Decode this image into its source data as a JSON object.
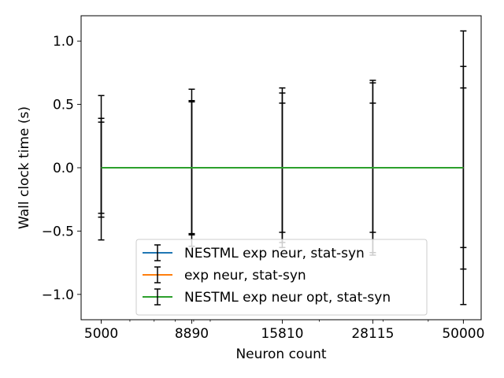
{
  "chart_data": {
    "type": "line",
    "title": "",
    "xlabel": "Neuron count",
    "ylabel": "Wall clock time (s)",
    "x_scale": "log",
    "xlim": [
      4400,
      56000
    ],
    "ylim": [
      -1.2,
      1.2
    ],
    "grid": false,
    "legend_position": "lower-center",
    "x_ticks": [
      5000,
      8890,
      15810,
      28115,
      50000
    ],
    "x_tick_labels": [
      "5000",
      "8890",
      "15810",
      "28115",
      "50000"
    ],
    "y_ticks": [
      1.0,
      0.5,
      0.0,
      -0.5,
      -1.0
    ],
    "y_tick_labels": [
      "1.0",
      "0.5",
      "0.0",
      "−0.5",
      "−1.0"
    ],
    "x": [
      5000,
      8890,
      15810,
      28115,
      50000
    ],
    "series": [
      {
        "name": "NESTML exp neur, stat-syn",
        "color": "#1f77b4",
        "values": [
          0,
          0,
          0,
          0,
          0
        ],
        "errors": [
          0.57,
          0.53,
          0.51,
          0.51,
          0.63
        ]
      },
      {
        "name": "exp neur, stat-syn",
        "color": "#ff7f0e",
        "values": [
          0,
          0,
          0,
          0,
          0
        ],
        "errors": [
          0.39,
          0.62,
          0.59,
          0.67,
          0.8
        ]
      },
      {
        "name": "NESTML exp neur opt, stat-syn",
        "color": "#2ca02c",
        "values": [
          0,
          0,
          0,
          0,
          0
        ],
        "errors": [
          0.36,
          0.52,
          0.63,
          0.69,
          1.08
        ]
      }
    ]
  }
}
